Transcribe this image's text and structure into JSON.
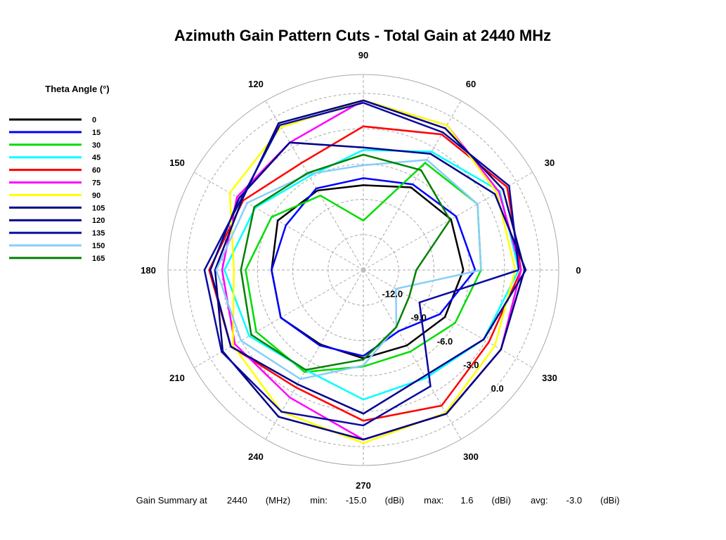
{
  "chart_data": {
    "type": "polar-line",
    "title": "Azimuth Gain Pattern Cuts - Total Gain at 2440 MHz",
    "angle_ticks": [
      0,
      30,
      60,
      90,
      120,
      150,
      180,
      210,
      240,
      270,
      300,
      330
    ],
    "angle_labels": [
      "0",
      "30",
      "60",
      "90",
      "120",
      "150",
      "180",
      "210",
      "240",
      "270",
      "300",
      "330"
    ],
    "radial_ticks": [
      -12,
      -9,
      -6,
      -3,
      0
    ],
    "radial_labels": [
      "-12.0",
      "-9.0",
      "-6.0",
      "-3.0",
      "0.0"
    ],
    "rlim": [
      -15,
      1.6
    ],
    "radial_label_angle": 318,
    "grid": true,
    "legend_title": "Theta Angle (°)",
    "legend_position": "left",
    "series": [
      {
        "name": "0",
        "color": "#000000",
        "angles": [
          0,
          30,
          60,
          90,
          120,
          150,
          180,
          210,
          240,
          270,
          300,
          330
        ],
        "gains": [
          -6.5,
          -6.4,
          -6.9,
          -7.8,
          -7.2,
          -6.6,
          -7.2,
          -6.9,
          -7.7,
          -7.5,
          -7.6,
          -7.0
        ]
      },
      {
        "name": "15",
        "color": "#0000ff",
        "angles": [
          0,
          30,
          60,
          90,
          120,
          150,
          180,
          210,
          240,
          270,
          300,
          330
        ],
        "gains": [
          -5.5,
          -5.9,
          -6.6,
          -7.2,
          -7.0,
          -7.4,
          -7.2,
          -6.9,
          -7.6,
          -7.7,
          -9.0,
          -7.5
        ]
      },
      {
        "name": "30",
        "color": "#00dd00",
        "angles": [
          0,
          30,
          60,
          90,
          120,
          150,
          180,
          210,
          240,
          270,
          300,
          330
        ],
        "gains": [
          -5.0,
          -3.8,
          -4.5,
          -10.8,
          -7.7,
          -6.0,
          -5.0,
          -4.5,
          -5.0,
          -6.8,
          -7.0,
          -6.0
        ]
      },
      {
        "name": "45",
        "color": "#00ffff",
        "angles": [
          0,
          30,
          60,
          90,
          120,
          150,
          180,
          210,
          240,
          270,
          300,
          330
        ],
        "gains": [
          -1.8,
          -1.6,
          -3.4,
          -4.8,
          -5.8,
          -4.4,
          -3.2,
          -3.8,
          -5.2,
          -4.0,
          -4.4,
          -3.2
        ]
      },
      {
        "name": "60",
        "color": "#ff0000",
        "angles": [
          0,
          30,
          60,
          90,
          120,
          150,
          180,
          210,
          240,
          270,
          300,
          330
        ],
        "gains": [
          -1.6,
          -0.9,
          -1.7,
          -2.8,
          -4.5,
          -3.2,
          -1.9,
          -2.0,
          -3.5,
          -2.2,
          -1.7,
          -2.7
        ]
      },
      {
        "name": "75",
        "color": "#ff00ff",
        "angles": [
          0,
          30,
          60,
          90,
          120,
          150,
          180,
          210,
          240,
          270,
          300,
          330
        ],
        "gains": [
          -1.6,
          -1.7,
          -0.8,
          -0.6,
          -2.5,
          -2.6,
          -3.0,
          -2.4,
          -2.5,
          -0.6,
          -0.9,
          -1.5
        ]
      },
      {
        "name": "90",
        "color": "#ffff00",
        "angles": [
          0,
          30,
          60,
          90,
          120,
          150,
          180,
          210,
          240,
          270,
          300,
          330
        ],
        "gains": [
          -2.1,
          -1.9,
          -0.8,
          -0.6,
          -1.0,
          -1.9,
          -4.0,
          -2.2,
          -1.1,
          -0.3,
          -1.0,
          -2.1
        ]
      },
      {
        "name": "105",
        "color": "#000080",
        "angles": [
          0,
          30,
          60,
          90,
          120,
          150,
          180,
          210,
          240,
          270,
          300,
          330
        ],
        "gains": [
          -1.3,
          -1.3,
          -1.1,
          -0.6,
          -0.6,
          -3.1,
          -2.4,
          -1.2,
          -0.6,
          -0.6,
          -0.9,
          -1.5
        ]
      },
      {
        "name": "120",
        "color": "#00008b",
        "angles": [
          0,
          30,
          60,
          90,
          120,
          150,
          180,
          210,
          240,
          270,
          300,
          330
        ],
        "gains": [
          -1.2,
          -2.1,
          -3.6,
          -4.6,
          -2.5,
          -2.8,
          -2.0,
          -2.0,
          -3.8,
          -2.8,
          -4.6,
          -3.2
        ]
      },
      {
        "name": "135",
        "color": "#0a0aa0",
        "angles": [
          0,
          30,
          60,
          90,
          120,
          150,
          180,
          210,
          240,
          270,
          300,
          330
        ],
        "gains": [
          -1.8,
          -0.7,
          -1.5,
          -0.8,
          -0.8,
          -3.0,
          -1.5,
          -1.1,
          -1.1,
          -1.8,
          -3.6,
          -9.5
        ]
      },
      {
        "name": "150",
        "color": "#87cefa",
        "angles": [
          0,
          30,
          60,
          90,
          120,
          150,
          180,
          210,
          240,
          270,
          300,
          330
        ],
        "gains": [
          -5.0,
          -3.8,
          -4.2,
          -6.1,
          -5.6,
          -3.6,
          -2.5,
          -3.0,
          -4.3,
          -6.9,
          -9.4,
          -11.8
        ]
      },
      {
        "name": "165",
        "color": "#008000",
        "angles": [
          0,
          30,
          60,
          90,
          120,
          150,
          180,
          210,
          240,
          270,
          300,
          330
        ],
        "gains": [
          -10.5,
          -6.5,
          -5.2,
          -5.2,
          -5.5,
          -4.3,
          -4.6,
          -4.0,
          -5.2,
          -7.4,
          -9.4,
          -10.5
        ]
      }
    ],
    "summary": {
      "label": "Gain Summary at",
      "frequency": "2440",
      "frequency_unit": "(MHz)",
      "min_label": "min:",
      "min": "-15.0",
      "max_label": "max:",
      "max": "1.6",
      "avg_label": "avg:",
      "avg": "-3.0",
      "unit": "(dBi)"
    }
  }
}
